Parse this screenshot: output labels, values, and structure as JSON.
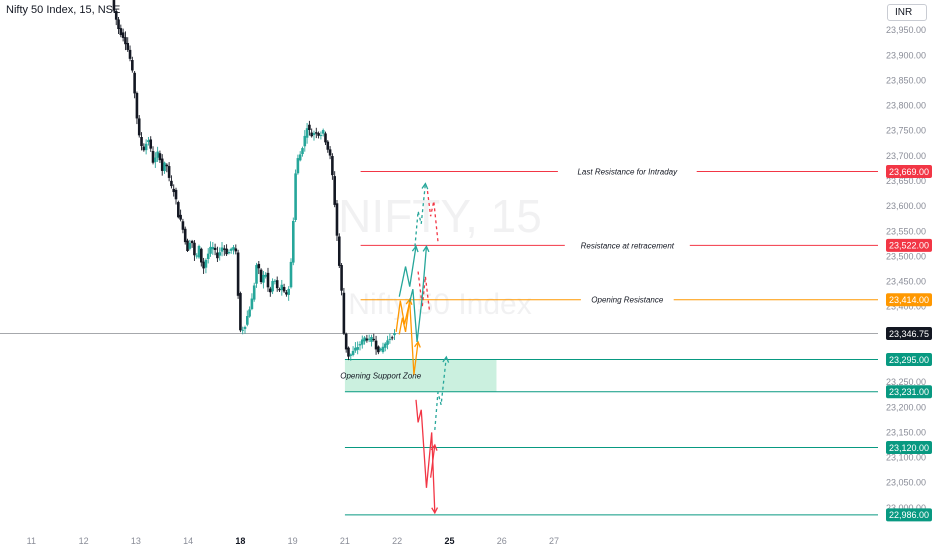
{
  "header": {
    "symbol_title": "Nifty 50 Index, 15, NSE",
    "currency": "INR"
  },
  "watermark": {
    "symbol": "NIFTY, 15",
    "name": "Nifty 50 Index"
  },
  "colors": {
    "up": "#26a69a",
    "down": "#131722",
    "resistance": "#f23645",
    "opening": "#ff9800",
    "support": "#089981",
    "zone_fill": "#b9ebd4",
    "current": "#131722"
  },
  "chart_data": {
    "type": "candlestick",
    "ylim": [
      22960,
      24010
    ],
    "xlim": [
      10.4,
      27.2
    ],
    "y_ticks": [
      23000,
      23050,
      23100,
      23150,
      23200,
      23250,
      23300,
      23350,
      23400,
      23450,
      23500,
      23550,
      23600,
      23650,
      23700,
      23750,
      23800,
      23850,
      23900,
      23950
    ],
    "y_tick_labels": [
      "23,000.00",
      "23,050.00",
      "23,100.00",
      "23,150.00",
      "23,200.00",
      "23,250.00",
      "23,300.00",
      "23,350.00",
      "23,400.00",
      "23,450.00",
      "23,500.00",
      "23,550.00",
      "23,600.00",
      "23,650.00",
      "23,700.00",
      "23,750.00",
      "23,800.00",
      "23,850.00",
      "23,900.00",
      "23,950.00"
    ],
    "x_ticks": [
      {
        "value": 11,
        "label": "11",
        "bold": false
      },
      {
        "value": 12,
        "label": "12",
        "bold": false
      },
      {
        "value": 13,
        "label": "13",
        "bold": false
      },
      {
        "value": 14,
        "label": "14",
        "bold": false
      },
      {
        "value": 15,
        "label": "18",
        "bold": true
      },
      {
        "value": 16,
        "label": "19",
        "bold": false
      },
      {
        "value": 17,
        "label": "21",
        "bold": false
      },
      {
        "value": 18,
        "label": "22",
        "bold": false
      },
      {
        "value": 19,
        "label": "25",
        "bold": true
      },
      {
        "value": 20,
        "label": "26",
        "bold": false
      },
      {
        "value": 21,
        "label": "27",
        "bold": false
      }
    ],
    "price_path": [
      [
        12.58,
        24010
      ],
      [
        12.62,
        23990
      ],
      [
        12.72,
        23950
      ],
      [
        12.82,
        23935
      ],
      [
        12.92,
        23900
      ],
      [
        13.0,
        23850
      ],
      [
        13.05,
        23790
      ],
      [
        13.1,
        23740
      ],
      [
        13.18,
        23710
      ],
      [
        13.28,
        23735
      ],
      [
        13.38,
        23685
      ],
      [
        13.48,
        23710
      ],
      [
        13.55,
        23670
      ],
      [
        13.62,
        23690
      ],
      [
        13.7,
        23640
      ],
      [
        13.78,
        23630
      ],
      [
        13.86,
        23580
      ],
      [
        13.94,
        23560
      ],
      [
        14.02,
        23510
      ],
      [
        14.1,
        23540
      ],
      [
        14.18,
        23490
      ],
      [
        14.26,
        23520
      ],
      [
        14.32,
        23470
      ],
      [
        14.4,
        23500
      ],
      [
        14.5,
        23520
      ],
      [
        14.6,
        23500
      ],
      [
        14.7,
        23520
      ],
      [
        14.8,
        23505
      ],
      [
        14.9,
        23520
      ],
      [
        14.98,
        23500
      ],
      [
        15.02,
        23350
      ],
      [
        15.12,
        23360
      ],
      [
        15.2,
        23390
      ],
      [
        15.28,
        23420
      ],
      [
        15.36,
        23490
      ],
      [
        15.44,
        23450
      ],
      [
        15.52,
        23470
      ],
      [
        15.6,
        23420
      ],
      [
        15.68,
        23460
      ],
      [
        15.76,
        23430
      ],
      [
        15.84,
        23440
      ],
      [
        15.9,
        23420
      ],
      [
        15.98,
        23440
      ],
      [
        16.04,
        23530
      ],
      [
        16.08,
        23640
      ],
      [
        16.12,
        23690
      ],
      [
        16.18,
        23700
      ],
      [
        16.26,
        23730
      ],
      [
        16.32,
        23760
      ],
      [
        16.4,
        23740
      ],
      [
        16.48,
        23750
      ],
      [
        16.56,
        23740
      ],
      [
        16.62,
        23750
      ],
      [
        16.7,
        23720
      ],
      [
        16.78,
        23690
      ],
      [
        16.86,
        23590
      ],
      [
        16.92,
        23500
      ],
      [
        16.98,
        23430
      ],
      [
        17.02,
        23350
      ],
      [
        17.06,
        23320
      ],
      [
        17.12,
        23300
      ],
      [
        17.2,
        23310
      ],
      [
        17.28,
        23320
      ],
      [
        17.36,
        23330
      ],
      [
        17.44,
        23340
      ],
      [
        17.52,
        23330
      ],
      [
        17.58,
        23340
      ],
      [
        17.64,
        23320
      ],
      [
        17.72,
        23310
      ],
      [
        17.8,
        23325
      ],
      [
        17.88,
        23335
      ],
      [
        17.96,
        23345
      ]
    ],
    "current_price": {
      "value": 23346.75,
      "label": "23,346.75"
    },
    "levels": [
      {
        "name": "Last Resistance for Intraday",
        "price": 23669.0,
        "label": "23,669.00",
        "kind": "resistance",
        "x_start": 17.3
      },
      {
        "name": "Resistance at retracement",
        "price": 23522.0,
        "label": "23,522.00",
        "kind": "resistance",
        "x_start": 17.3
      },
      {
        "name": "Opening Resistance",
        "price": 23414.0,
        "label": "23,414.00",
        "kind": "opening",
        "x_start": 17.3
      },
      {
        "name": "",
        "price": 23295.0,
        "label": "23,295.00",
        "kind": "support",
        "x_start": 17.0
      },
      {
        "name": "",
        "price": 23231.0,
        "label": "23,231.00",
        "kind": "support",
        "x_start": 17.0
      },
      {
        "name": "",
        "price": 23120.0,
        "label": "23,120.00",
        "kind": "support",
        "x_start": 17.0
      },
      {
        "name": "",
        "price": 22986.0,
        "label": "22,986.00",
        "kind": "support",
        "x_start": 17.0
      }
    ],
    "zone": {
      "name": "Opening Support Zone",
      "x0": 17.0,
      "x1": 19.9,
      "y0": 23231,
      "y1": 23295
    },
    "scenarios": [
      {
        "color": "#ff9800",
        "dashed": false,
        "arrow": true,
        "points": [
          [
            17.98,
            23350
          ],
          [
            18.06,
            23412
          ],
          [
            18.14,
            23365
          ],
          [
            18.24,
            23410
          ],
          [
            18.32,
            23265
          ],
          [
            18.4,
            23330
          ]
        ]
      },
      {
        "color": "#ff9800",
        "dashed": false,
        "arrow": true,
        "points": [
          [
            18.04,
            23345
          ],
          [
            18.1,
            23378
          ],
          [
            18.16,
            23350
          ],
          [
            18.24,
            23415
          ]
        ]
      },
      {
        "color": "#26a69a",
        "dashed": false,
        "arrow": true,
        "points": [
          [
            18.04,
            23420
          ],
          [
            18.16,
            23480
          ],
          [
            18.24,
            23440
          ],
          [
            18.36,
            23520
          ]
        ]
      },
      {
        "color": "#f23645",
        "dashed": true,
        "arrow": false,
        "points": [
          [
            18.4,
            23470
          ],
          [
            18.48,
            23400
          ],
          [
            18.54,
            23460
          ],
          [
            18.62,
            23390
          ]
        ]
      },
      {
        "color": "#26a69a",
        "dashed": false,
        "arrow": true,
        "points": [
          [
            18.24,
            23410
          ],
          [
            18.3,
            23435
          ],
          [
            18.38,
            23330
          ],
          [
            18.48,
            23420
          ],
          [
            18.56,
            23520
          ]
        ]
      },
      {
        "color": "#26a69a",
        "dashed": true,
        "arrow": true,
        "points": [
          [
            18.34,
            23520
          ],
          [
            18.4,
            23590
          ],
          [
            18.46,
            23565
          ],
          [
            18.54,
            23645
          ]
        ]
      },
      {
        "color": "#f23645",
        "dashed": true,
        "arrow": false,
        "points": [
          [
            18.58,
            23630
          ],
          [
            18.64,
            23580
          ],
          [
            18.7,
            23610
          ],
          [
            18.78,
            23530
          ]
        ]
      },
      {
        "color": "#f23645",
        "dashed": false,
        "arrow": true,
        "points": [
          [
            18.36,
            23215
          ],
          [
            18.4,
            23170
          ],
          [
            18.46,
            23195
          ],
          [
            18.56,
            23040
          ],
          [
            18.66,
            23150
          ],
          [
            18.72,
            22990
          ]
        ]
      },
      {
        "color": "#26a69a",
        "dashed": true,
        "arrow": true,
        "points": [
          [
            18.72,
            23155
          ],
          [
            18.78,
            23230
          ],
          [
            18.84,
            23205
          ],
          [
            18.94,
            23300
          ]
        ]
      },
      {
        "color": "#f23645",
        "dashed": false,
        "arrow": true,
        "points": [
          [
            18.64,
            23060
          ],
          [
            18.72,
            23125
          ]
        ]
      }
    ]
  }
}
